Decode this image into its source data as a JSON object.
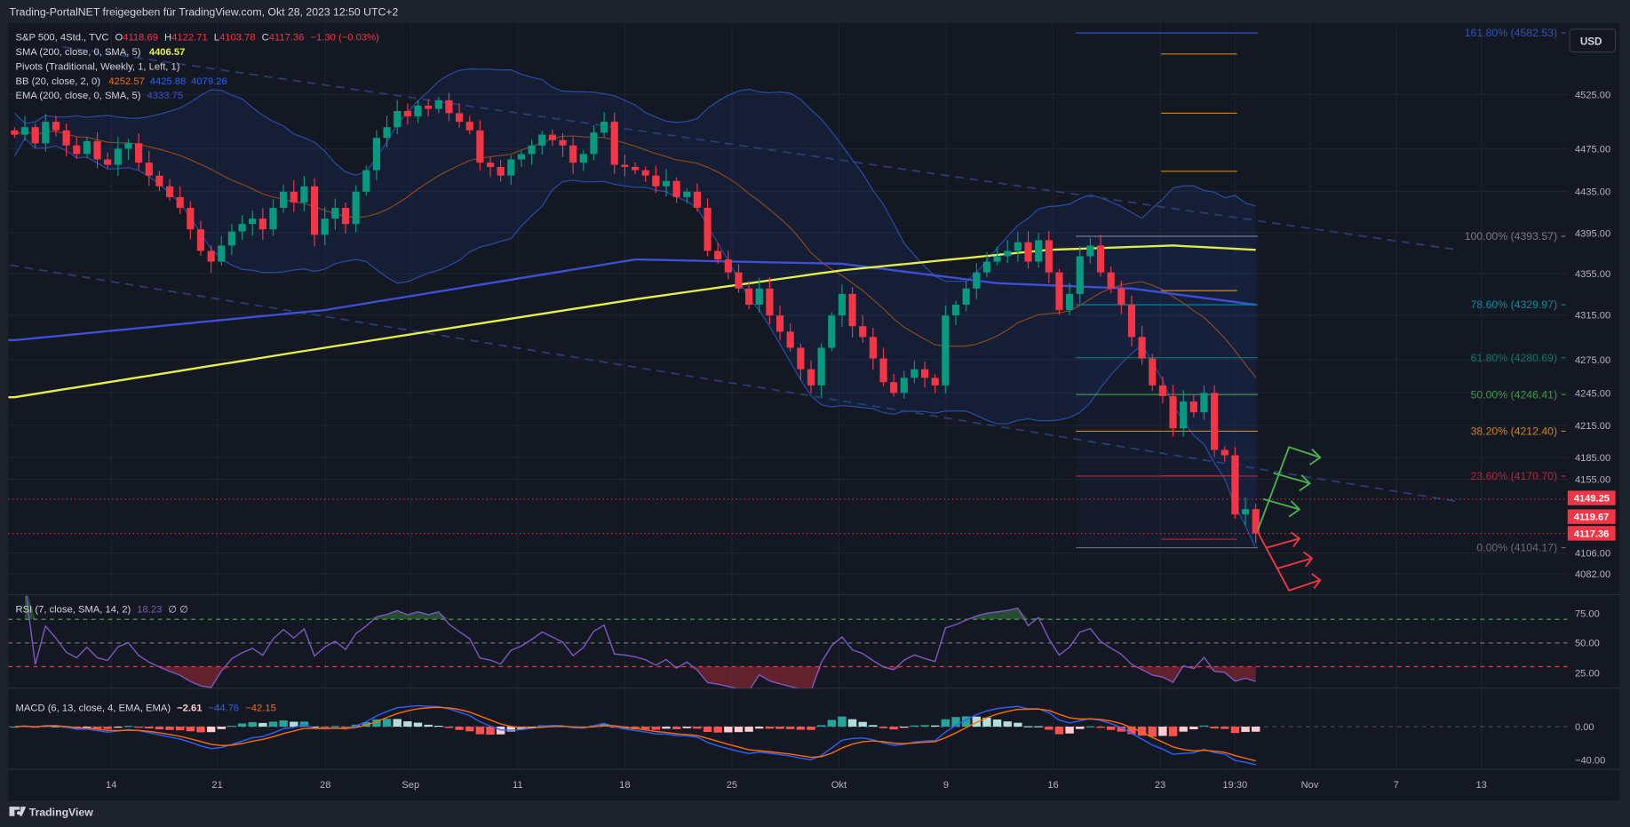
{
  "header": {
    "title": "Trading-PortalNET freigegeben für TradingView.com, Okt 28, 2023 12:50 UTC+2"
  },
  "legend": {
    "symbol": "S&P 500, 4Std., TVC",
    "o_label": "O",
    "o": "4118.69",
    "h_label": "H",
    "h": "4122.71",
    "l_label": "L",
    "l": "4103.78",
    "c_label": "C",
    "c": "4117.36",
    "change": "−1.30 (−0.03%)",
    "sma": "SMA (200, close, 0, SMA, 5)",
    "sma_val": "4406.57",
    "pivots": "Pivots (Traditional, Weekly, 1, Left, 1)",
    "bb": "BB (20, close, 2, 0)",
    "bb_basis": "4252.57",
    "bb_upper": "4425.88",
    "bb_lower": "4079.26",
    "ema": "EMA (200, close, 0, SMA, 5)",
    "ema_val": "4333.75"
  },
  "currency_button": "USD",
  "price_axis": [
    "4525.00",
    "4475.00",
    "4435.00",
    "4395.00",
    "4355.00",
    "4315.00",
    "4275.00",
    "4245.00",
    "4215.00",
    "4185.00",
    "4155.00",
    "4106.00",
    "4082.00"
  ],
  "price_tags": [
    {
      "value": "4149.25",
      "color": "#f23645"
    },
    {
      "value": "4119.67",
      "color": "#f23645"
    },
    {
      "value": "4117.36",
      "color": "#f23645"
    }
  ],
  "fib_levels": [
    {
      "label": "161.80% (4582.53)",
      "price": 4582.53,
      "color": "#2f55b8"
    },
    {
      "label": "100.00% (4393.57)",
      "price": 4393.57,
      "color": "#787b86"
    },
    {
      "label": "78.60% (4329.97)",
      "price": 4329.97,
      "color": "#0a8fa0"
    },
    {
      "label": "61.80% (4280.69)",
      "price": 4280.69,
      "color": "#0a7a6a"
    },
    {
      "label": "50.00% (4246.41)",
      "price": 4246.41,
      "color": "#3f9a3f"
    },
    {
      "label": "38.20% (4212.40)",
      "price": 4212.4,
      "color": "#d4850f"
    },
    {
      "label": "23.60% (4170.70)",
      "price": 4170.7,
      "color": "#b8263a"
    },
    {
      "label": "0.00% (4104.17)",
      "price": 4104.17,
      "color": "#6a6d78"
    }
  ],
  "rsi": {
    "legend": "RSI (7, close, SMA, 14, 2)",
    "value": "18.23",
    "extra": "∅  ∅",
    "axis": [
      "75.00",
      "50.00",
      "25.00"
    ]
  },
  "macd": {
    "legend": "MACD (6, 13, close, 4, EMA, EMA)",
    "hist": "−2.61",
    "macd": "−44.76",
    "signal": "−42.15",
    "axis": [
      "0.00",
      "−40.00"
    ]
  },
  "time_axis": [
    "14",
    "21",
    "28",
    "Sep",
    "11",
    "18",
    "25",
    "Okt",
    "9",
    "16",
    "23",
    "19:30",
    "Nov",
    "7",
    "13"
  ],
  "footer": {
    "brand": "TradingView"
  },
  "chart_data": {
    "type": "candlestick",
    "symbol": "S&P 500",
    "timeframe": "4h",
    "ylim": [
      4060,
      4600
    ],
    "closes": [
      4488,
      4495,
      4480,
      4500,
      4492,
      4478,
      4470,
      4482,
      4465,
      4460,
      4475,
      4480,
      4462,
      4450,
      4440,
      4430,
      4420,
      4400,
      4380,
      4370,
      4385,
      4398,
      4405,
      4410,
      4400,
      4420,
      4435,
      4425,
      4440,
      4395,
      4410,
      4420,
      4405,
      4435,
      4455,
      4485,
      4495,
      4510,
      4505,
      4515,
      4512,
      4520,
      4508,
      4500,
      4492,
      4462,
      4458,
      4450,
      4465,
      4470,
      4478,
      4488,
      4483,
      4478,
      4462,
      4470,
      4490,
      4500,
      4460,
      4458,
      4455,
      4450,
      4440,
      4445,
      4430,
      4435,
      4420,
      4380,
      4372,
      4360,
      4345,
      4330,
      4345,
      4320,
      4305,
      4290,
      4270,
      4255,
      4290,
      4320,
      4340,
      4310,
      4300,
      4280,
      4258,
      4248,
      4262,
      4270,
      4262,
      4255,
      4320,
      4330,
      4345,
      4360,
      4370,
      4375,
      4380,
      4388,
      4370,
      4390,
      4360,
      4325,
      4340,
      4375,
      4385,
      4360,
      4345,
      4330,
      4300,
      4280,
      4255,
      4245,
      4215,
      4240,
      4230,
      4248,
      4195,
      4190,
      4135,
      4140,
      4117.36
    ],
    "sma200": [
      [
        0,
        4244
      ],
      [
        30,
        4290
      ],
      [
        60,
        4335
      ],
      [
        80,
        4362
      ],
      [
        100,
        4381
      ],
      [
        112,
        4385
      ],
      [
        120,
        4381
      ]
    ],
    "ema200": [
      [
        0,
        4297
      ],
      [
        30,
        4325
      ],
      [
        60,
        4372
      ],
      [
        80,
        4368
      ],
      [
        95,
        4350
      ],
      [
        108,
        4345
      ],
      [
        120,
        4330
      ]
    ],
    "pivots": [
      4563,
      4508,
      4454,
      4343,
      4171,
      4112
    ],
    "rsi_levels": [
      70,
      50,
      30
    ]
  }
}
